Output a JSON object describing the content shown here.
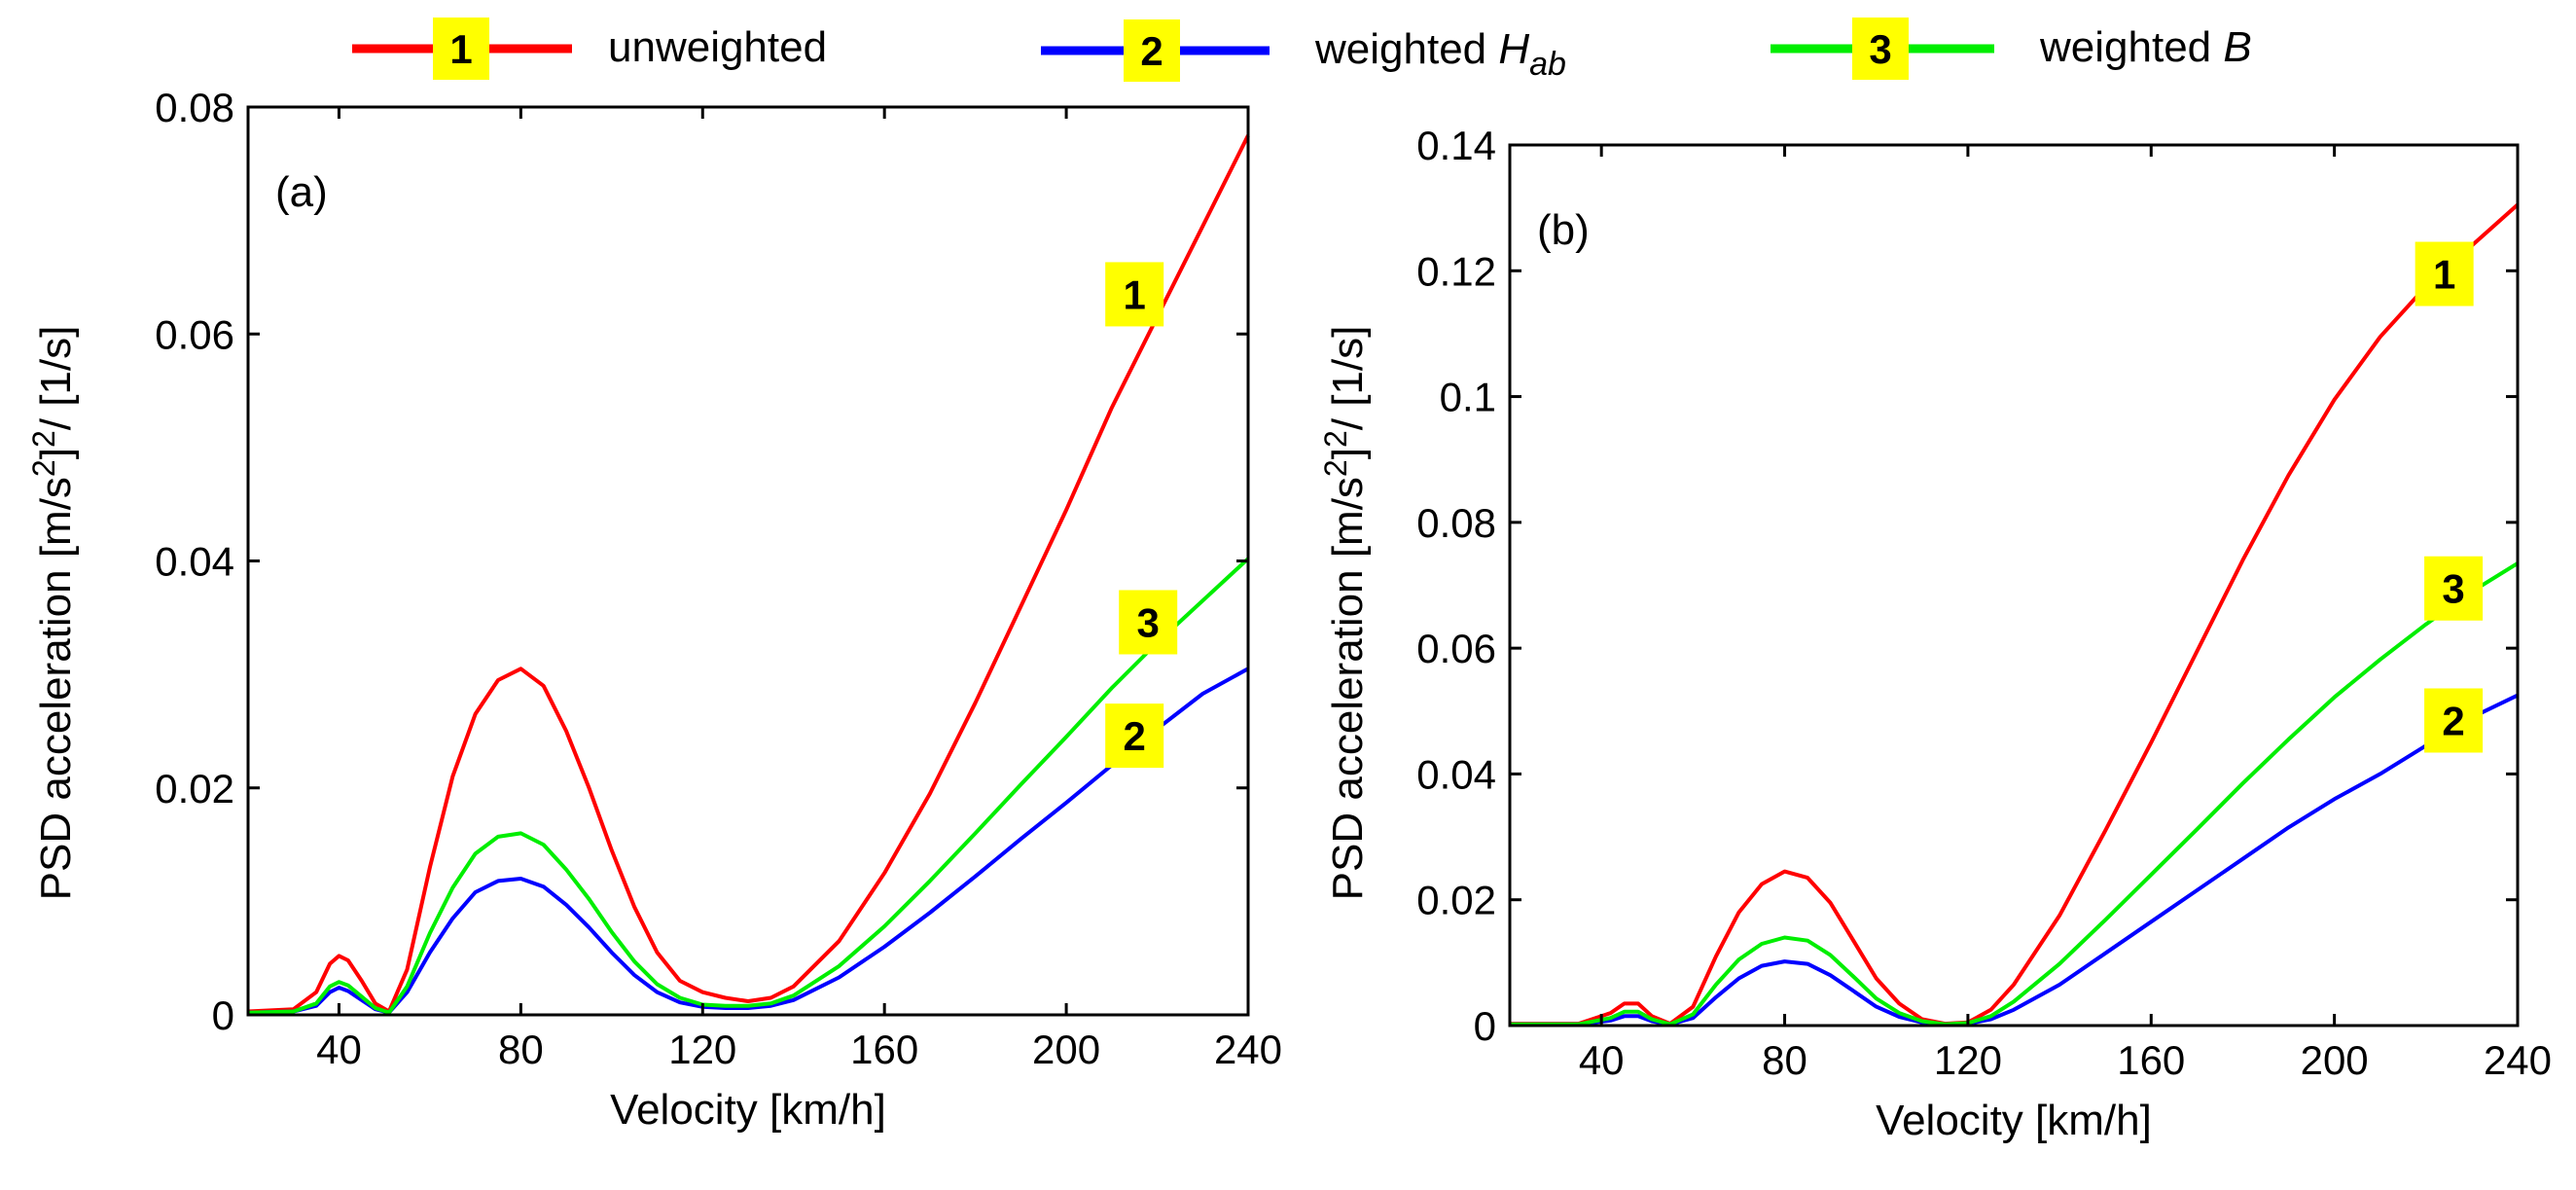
{
  "legend": {
    "items": [
      {
        "id": "1",
        "label": "unweighted",
        "color": "#ff0000"
      },
      {
        "id": "2",
        "label_prefix": "weighted ",
        "symbol": "H",
        "subscript": "ab",
        "color": "#0000ff"
      },
      {
        "id": "3",
        "label_prefix": "weighted ",
        "symbol": "B",
        "subscript": "",
        "color": "#00ee00"
      }
    ]
  },
  "colors": {
    "badge": "#ffff00",
    "axis": "#000000"
  },
  "chart_data": [
    {
      "type": "line",
      "panel_label": "(a)",
      "xlabel": "Velocity [km/h]",
      "ylabel": "PSD acceleration [m/s²]² / [1/s]",
      "xlim": [
        20,
        240
      ],
      "ylim": [
        0,
        0.08
      ],
      "xticks": [
        40,
        80,
        120,
        160,
        200,
        240
      ],
      "yticks": [
        0,
        0.02,
        0.04,
        0.06,
        0.08
      ],
      "ytick_labels": [
        "0",
        "0.02",
        "0.04",
        "0.06",
        "0.08"
      ],
      "badges": [
        {
          "id": "1",
          "x": 215,
          "y": 0.0635
        },
        {
          "id": "3",
          "x": 218,
          "y": 0.0346
        },
        {
          "id": "2",
          "x": 215,
          "y": 0.0246
        }
      ],
      "series": [
        {
          "name": "unweighted",
          "id": "1",
          "color": "#ff0000",
          "x": [
            20,
            30,
            35,
            38,
            40,
            42,
            45,
            48,
            51,
            55,
            60,
            65,
            70,
            75,
            80,
            85,
            90,
            95,
            100,
            105,
            110,
            115,
            120,
            125,
            130,
            135,
            140,
            150,
            160,
            170,
            180,
            190,
            200,
            210,
            220,
            230,
            240
          ],
          "values": [
            0.0003,
            0.0005,
            0.002,
            0.0045,
            0.0052,
            0.0048,
            0.003,
            0.001,
            0.0003,
            0.004,
            0.013,
            0.021,
            0.0265,
            0.0295,
            0.0305,
            0.029,
            0.025,
            0.02,
            0.0145,
            0.0095,
            0.0055,
            0.003,
            0.002,
            0.0015,
            0.0012,
            0.0015,
            0.0025,
            0.0065,
            0.0125,
            0.0195,
            0.0275,
            0.036,
            0.0445,
            0.0535,
            0.0615,
            0.0695,
            0.0775
          ]
        },
        {
          "name": "weighted Hab",
          "id": "2",
          "color": "#0000ff",
          "x": [
            20,
            30,
            35,
            38,
            40,
            42,
            45,
            48,
            51,
            55,
            60,
            65,
            70,
            75,
            80,
            85,
            90,
            95,
            100,
            105,
            110,
            115,
            120,
            125,
            130,
            135,
            140,
            150,
            160,
            170,
            180,
            190,
            200,
            210,
            220,
            230,
            240
          ],
          "values": [
            0.0002,
            0.0003,
            0.0008,
            0.002,
            0.0024,
            0.0021,
            0.0013,
            0.0005,
            0.0002,
            0.002,
            0.0055,
            0.0085,
            0.0108,
            0.0118,
            0.012,
            0.0113,
            0.0097,
            0.0077,
            0.0055,
            0.0035,
            0.002,
            0.0011,
            0.0007,
            0.0006,
            0.0006,
            0.0008,
            0.0013,
            0.0033,
            0.006,
            0.009,
            0.0122,
            0.0155,
            0.0187,
            0.022,
            0.0252,
            0.0283,
            0.0305
          ]
        },
        {
          "name": "weighted B",
          "id": "3",
          "color": "#00ee00",
          "x": [
            20,
            30,
            35,
            38,
            40,
            42,
            45,
            48,
            51,
            55,
            60,
            65,
            70,
            75,
            80,
            85,
            90,
            95,
            100,
            105,
            110,
            115,
            120,
            125,
            130,
            135,
            140,
            150,
            160,
            170,
            180,
            190,
            200,
            210,
            220,
            230,
            240
          ],
          "values": [
            0.0002,
            0.0003,
            0.001,
            0.0025,
            0.0029,
            0.0026,
            0.0016,
            0.0006,
            0.0002,
            0.0025,
            0.0072,
            0.0112,
            0.0142,
            0.0157,
            0.016,
            0.015,
            0.0128,
            0.0102,
            0.0073,
            0.0047,
            0.0027,
            0.0015,
            0.0009,
            0.0008,
            0.0008,
            0.001,
            0.0017,
            0.0043,
            0.0078,
            0.0118,
            0.016,
            0.0203,
            0.0245,
            0.0288,
            0.0328,
            0.0365,
            0.0402
          ]
        }
      ]
    },
    {
      "type": "line",
      "panel_label": "(b)",
      "xlabel": "Velocity [km/h]",
      "ylabel": "PSD acceleration [m/s²]² / [1/s]",
      "xlim": [
        20,
        240
      ],
      "ylim": [
        0,
        0.14
      ],
      "xticks": [
        40,
        80,
        120,
        160,
        200,
        240
      ],
      "yticks": [
        0,
        0.02,
        0.04,
        0.06,
        0.08,
        0.1,
        0.12,
        0.14
      ],
      "ytick_labels": [
        "0",
        "0.02",
        "0.04",
        "0.06",
        "0.08",
        "0.1",
        "0.12",
        "0.14"
      ],
      "badges": [
        {
          "id": "1",
          "x": 224,
          "y": 0.1195
        },
        {
          "id": "3",
          "x": 226,
          "y": 0.0695
        },
        {
          "id": "2",
          "x": 226,
          "y": 0.0485
        }
      ],
      "series": [
        {
          "name": "unweighted",
          "id": "1",
          "color": "#ff0000",
          "x": [
            20,
            35,
            42,
            45,
            48,
            51,
            55,
            60,
            65,
            70,
            75,
            80,
            85,
            90,
            95,
            100,
            105,
            110,
            115,
            120,
            125,
            130,
            140,
            150,
            160,
            170,
            180,
            190,
            200,
            210,
            220,
            230,
            240
          ],
          "values": [
            0.0003,
            0.0003,
            0.002,
            0.0035,
            0.0035,
            0.0015,
            0.0003,
            0.003,
            0.011,
            0.018,
            0.0225,
            0.0245,
            0.0235,
            0.0195,
            0.0135,
            0.0075,
            0.0035,
            0.001,
            0.0003,
            0.0005,
            0.0025,
            0.0065,
            0.0175,
            0.031,
            0.045,
            0.0595,
            0.074,
            0.0875,
            0.0995,
            0.1095,
            0.1175,
            0.124,
            0.1305
          ]
        },
        {
          "name": "weighted Hab",
          "id": "2",
          "color": "#0000ff",
          "x": [
            20,
            35,
            42,
            45,
            48,
            51,
            55,
            60,
            65,
            70,
            75,
            80,
            85,
            90,
            95,
            100,
            105,
            110,
            115,
            120,
            125,
            130,
            140,
            150,
            160,
            170,
            180,
            190,
            200,
            210,
            220,
            230,
            240
          ],
          "values": [
            0.0002,
            0.0002,
            0.0008,
            0.0015,
            0.0015,
            0.0007,
            0.0002,
            0.0012,
            0.0045,
            0.0075,
            0.0095,
            0.0102,
            0.0098,
            0.008,
            0.0055,
            0.003,
            0.0014,
            0.0005,
            0.0002,
            0.0003,
            0.001,
            0.0025,
            0.0065,
            0.0115,
            0.0165,
            0.0215,
            0.0265,
            0.0315,
            0.036,
            0.04,
            0.0445,
            0.049,
            0.0525
          ]
        },
        {
          "name": "weighted B",
          "id": "3",
          "color": "#00ee00",
          "x": [
            20,
            35,
            42,
            45,
            48,
            51,
            55,
            60,
            65,
            70,
            75,
            80,
            85,
            90,
            95,
            100,
            105,
            110,
            115,
            120,
            125,
            130,
            140,
            150,
            160,
            170,
            180,
            190,
            200,
            210,
            220,
            230,
            240
          ],
          "values": [
            0.0002,
            0.0002,
            0.0012,
            0.0022,
            0.0022,
            0.001,
            0.0002,
            0.0018,
            0.0065,
            0.0105,
            0.013,
            0.014,
            0.0135,
            0.0112,
            0.0078,
            0.0043,
            0.002,
            0.0007,
            0.0002,
            0.0004,
            0.0015,
            0.0038,
            0.0098,
            0.0168,
            0.024,
            0.0312,
            0.0385,
            0.0455,
            0.0522,
            0.0582,
            0.0638,
            0.069,
            0.0735
          ]
        }
      ]
    }
  ]
}
